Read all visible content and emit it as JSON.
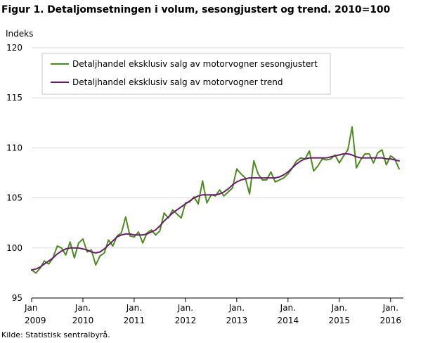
{
  "title": "Figur 1. Detaljomsetningen i volum, sesongjustert og trend. 2010=100",
  "source": "Kilde: Statistisk sentralbyrå.",
  "chart_data": {
    "type": "line",
    "ylabel": "Indeks",
    "ylim": [
      95,
      120
    ],
    "yticks": [
      95,
      100,
      105,
      110,
      115,
      120
    ],
    "xlim": [
      2009.0,
      2016.25
    ],
    "xticks": [
      {
        "x": 2009.0,
        "line1": "Jan",
        "line2": "2009"
      },
      {
        "x": 2010.0,
        "line1": "Jan.",
        "line2": "2010"
      },
      {
        "x": 2011.0,
        "line1": "Jan.",
        "line2": "2011"
      },
      {
        "x": 2012.0,
        "line1": "Jan.",
        "line2": "2012"
      },
      {
        "x": 2013.0,
        "line1": "Jan.",
        "line2": "2013"
      },
      {
        "x": 2014.0,
        "line1": "Jan.",
        "line2": "2014"
      },
      {
        "x": 2015.0,
        "line1": "Jan.",
        "line2": "2015"
      },
      {
        "x": 2016.0,
        "line1": "Jan.",
        "line2": "2016"
      }
    ],
    "grid": "horizontal",
    "legend_position": "top-left",
    "x_start": "2009-01",
    "x_step": "month",
    "series": [
      {
        "name": "Detaljhandel eksklusiv salg av motorvogner sesongjustert",
        "color": "#4a8d1c",
        "values": [
          97.8,
          97.5,
          98.0,
          98.7,
          98.4,
          99.0,
          100.2,
          100.0,
          99.3,
          100.6,
          99.0,
          100.5,
          100.9,
          99.6,
          99.8,
          98.3,
          99.2,
          99.5,
          100.8,
          100.2,
          101.2,
          101.5,
          103.1,
          101.2,
          101.1,
          101.6,
          100.5,
          101.5,
          101.8,
          101.3,
          101.7,
          103.5,
          103.0,
          103.8,
          103.4,
          103.0,
          104.5,
          104.6,
          105.1,
          104.4,
          106.7,
          104.5,
          105.3,
          105.2,
          105.8,
          105.2,
          105.6,
          106.0,
          107.9,
          107.4,
          107.0,
          105.4,
          108.7,
          107.4,
          106.8,
          106.8,
          107.6,
          106.6,
          106.8,
          107.0,
          107.4,
          108.0,
          108.7,
          109.0,
          108.9,
          109.7,
          107.7,
          108.2,
          108.9,
          108.8,
          108.9,
          109.3,
          108.5,
          109.2,
          109.8,
          112.1,
          108.0,
          108.8,
          109.4,
          109.4,
          108.5,
          109.5,
          109.8,
          108.3,
          109.2,
          108.9,
          107.9
        ]
      },
      {
        "name": "Detaljhandel eksklusiv salg av motorvogner trend",
        "color": "#6a1b6e",
        "values": [
          97.8,
          97.9,
          98.1,
          98.4,
          98.7,
          99.0,
          99.4,
          99.7,
          99.9,
          100.0,
          100.0,
          100.0,
          99.9,
          99.8,
          99.6,
          99.5,
          99.6,
          99.9,
          100.3,
          100.7,
          101.1,
          101.3,
          101.4,
          101.4,
          101.3,
          101.3,
          101.3,
          101.4,
          101.6,
          101.8,
          102.2,
          102.7,
          103.1,
          103.5,
          103.8,
          104.1,
          104.4,
          104.7,
          105.0,
          105.2,
          105.3,
          105.3,
          105.3,
          105.3,
          105.4,
          105.6,
          105.9,
          106.3,
          106.6,
          106.8,
          106.9,
          107.0,
          107.0,
          107.0,
          107.0,
          107.0,
          107.0,
          107.0,
          107.1,
          107.3,
          107.6,
          108.0,
          108.4,
          108.7,
          108.9,
          109.0,
          109.0,
          109.0,
          109.0,
          109.0,
          109.1,
          109.2,
          109.3,
          109.4,
          109.4,
          109.3,
          109.1,
          109.0,
          109.0,
          109.0,
          109.0,
          109.0,
          109.0,
          108.9,
          108.9,
          108.8,
          108.7
        ]
      }
    ]
  }
}
